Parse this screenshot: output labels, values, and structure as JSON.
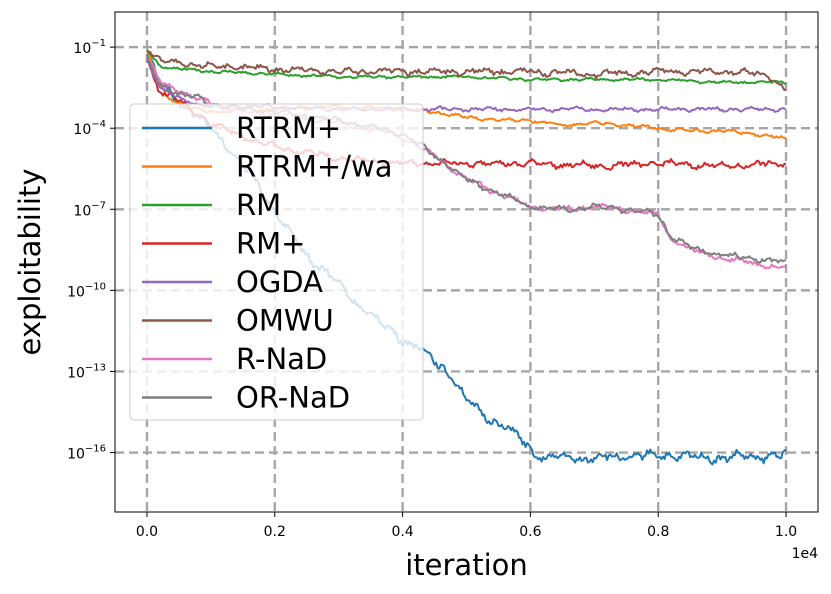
{
  "chart_data": {
    "type": "line",
    "title": "",
    "xlabel": "iteration",
    "ylabel": "exploitability",
    "x_multiplier_label": "1e4",
    "xlim": [
      -0.05,
      1.05
    ],
    "ylim_log10": [
      -18.2,
      0.3
    ],
    "y_log_scale": true,
    "grid": true,
    "legend_position": "left",
    "x_ticks": [
      0.0,
      0.2,
      0.4,
      0.6,
      0.8,
      1.0
    ],
    "x_tick_labels": [
      "0.0",
      "0.2",
      "0.4",
      "0.6",
      "0.8",
      "1.0"
    ],
    "y_ticks": [
      -1,
      -4,
      -7,
      -10,
      -13,
      -16
    ],
    "y_tick_bases": [
      "10",
      "10",
      "10",
      "10",
      "10",
      "10"
    ],
    "y_tick_exponents": [
      "−1",
      "−4",
      "−7",
      "−10",
      "−13",
      "−16"
    ],
    "series": [
      {
        "name": "RTRM+",
        "color": "#1f77b4",
        "noise": 0.18,
        "x": [
          0.0,
          0.02,
          0.05,
          0.08,
          0.1,
          0.12,
          0.15,
          0.18,
          0.2,
          0.22,
          0.25,
          0.28,
          0.3,
          0.33,
          0.36,
          0.4,
          0.43,
          0.46,
          0.48,
          0.5,
          0.52,
          0.55,
          0.58,
          0.6,
          0.62,
          0.7,
          0.8,
          0.9,
          1.0
        ],
        "y": [
          -1.3,
          -2.3,
          -3.0,
          -3.6,
          -4.0,
          -4.5,
          -5.4,
          -6.3,
          -7.0,
          -7.8,
          -8.7,
          -9.3,
          -9.8,
          -10.5,
          -11.1,
          -11.8,
          -12.2,
          -12.8,
          -13.2,
          -14.1,
          -14.5,
          -14.9,
          -15.4,
          -15.9,
          -16.2,
          -16.2,
          -16.1,
          -16.2,
          -16.1
        ]
      },
      {
        "name": "RTRM+/wa",
        "color": "#ff7f0e",
        "noise": 0.06,
        "x": [
          0.0,
          0.03,
          0.06,
          0.1,
          0.15,
          0.2,
          0.3,
          0.4,
          0.45,
          0.5,
          0.55,
          0.6,
          0.65,
          0.7,
          0.75,
          0.8,
          0.85,
          0.9,
          0.95,
          1.0
        ],
        "y": [
          -1.2,
          -2.8,
          -3.2,
          -3.4,
          -3.3,
          -3.3,
          -3.2,
          -3.3,
          -3.4,
          -3.6,
          -3.7,
          -3.7,
          -3.9,
          -3.8,
          -3.9,
          -4.0,
          -4.1,
          -4.1,
          -4.2,
          -4.4
        ]
      },
      {
        "name": "RM",
        "color": "#2ca02c",
        "noise": 0.05,
        "x": [
          0.0,
          0.02,
          0.05,
          0.1,
          0.2,
          0.3,
          0.4,
          0.5,
          0.6,
          0.7,
          0.8,
          0.9,
          1.0
        ],
        "y": [
          -1.1,
          -1.7,
          -1.8,
          -1.9,
          -2.0,
          -2.1,
          -2.1,
          -2.1,
          -2.2,
          -2.2,
          -2.2,
          -2.3,
          -2.3
        ]
      },
      {
        "name": "RM+",
        "color": "#d62728",
        "noise": 0.12,
        "x": [
          0.0,
          0.02,
          0.05,
          0.08,
          0.1,
          0.15,
          0.2,
          0.3,
          0.4,
          0.5,
          0.6,
          0.7,
          0.8,
          0.9,
          1.0
        ],
        "y": [
          -1.5,
          -2.6,
          -3.0,
          -3.5,
          -3.8,
          -4.3,
          -4.7,
          -5.1,
          -5.3,
          -5.3,
          -5.3,
          -5.4,
          -5.3,
          -5.4,
          -5.3
        ]
      },
      {
        "name": "OGDA",
        "color": "#9467bd",
        "noise": 0.07,
        "x": [
          0.0,
          0.02,
          0.05,
          0.08,
          0.1,
          0.15,
          0.2,
          0.3,
          0.4,
          0.5,
          0.6,
          0.7,
          0.8,
          0.9,
          1.0
        ],
        "y": [
          -1.4,
          -2.5,
          -2.9,
          -3.1,
          -3.2,
          -3.2,
          -3.2,
          -3.3,
          -3.3,
          -3.3,
          -3.3,
          -3.3,
          -3.3,
          -3.3,
          -3.3
        ]
      },
      {
        "name": "OMWU",
        "color": "#8c564b",
        "noise": 0.12,
        "x": [
          0.0,
          0.02,
          0.05,
          0.1,
          0.2,
          0.3,
          0.4,
          0.5,
          0.6,
          0.7,
          0.8,
          0.9,
          0.97,
          1.0
        ],
        "y": [
          -1.0,
          -1.5,
          -1.6,
          -1.7,
          -1.8,
          -1.9,
          -1.9,
          -1.9,
          -1.9,
          -2.0,
          -1.9,
          -1.9,
          -2.0,
          -2.6
        ]
      },
      {
        "name": "R-NaD",
        "color": "#e377c2",
        "noise": 0.1,
        "x": [
          0.0,
          0.02,
          0.05,
          0.08,
          0.1,
          0.15,
          0.2,
          0.3,
          0.4,
          0.45,
          0.5,
          0.55,
          0.6,
          0.65,
          0.7,
          0.75,
          0.8,
          0.82,
          0.85,
          0.9,
          0.95,
          1.0
        ],
        "y": [
          -1.3,
          -2.3,
          -2.6,
          -2.9,
          -3.1,
          -3.4,
          -3.5,
          -3.8,
          -4.3,
          -5.0,
          -5.9,
          -6.4,
          -6.9,
          -7.0,
          -6.9,
          -7.0,
          -7.2,
          -8.1,
          -8.5,
          -8.8,
          -9.0,
          -9.2
        ]
      },
      {
        "name": "OR-NaD",
        "color": "#7f7f7f",
        "noise": 0.1,
        "x": [
          0.0,
          0.02,
          0.05,
          0.08,
          0.1,
          0.15,
          0.2,
          0.3,
          0.4,
          0.45,
          0.5,
          0.55,
          0.6,
          0.65,
          0.7,
          0.75,
          0.8,
          0.82,
          0.85,
          0.9,
          0.95,
          1.0
        ],
        "y": [
          -1.4,
          -2.4,
          -2.7,
          -2.9,
          -3.1,
          -3.3,
          -3.4,
          -3.7,
          -4.2,
          -5.0,
          -5.9,
          -6.4,
          -6.9,
          -7.0,
          -6.9,
          -7.0,
          -7.2,
          -8.0,
          -8.4,
          -8.7,
          -8.8,
          -9.0
        ]
      }
    ]
  }
}
